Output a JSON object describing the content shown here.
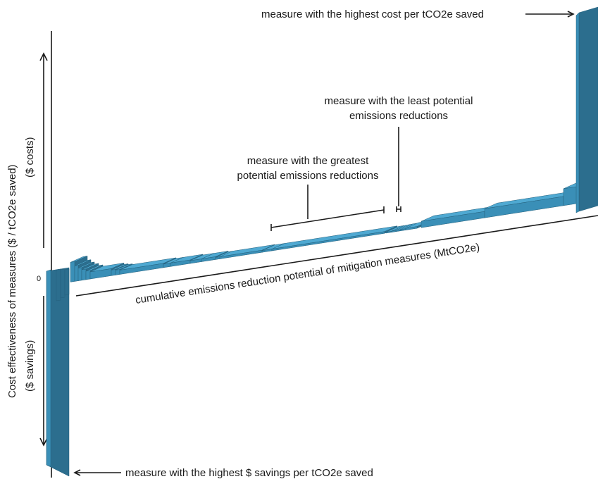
{
  "diagram": {
    "type": "marginal abatement cost curve (3D illustration)",
    "zero_label": "0",
    "y_axis_title": "Cost effectiveness of measures ($ / tCO2e saved)",
    "y_axis_costs_label": "($ costs)",
    "y_axis_savings_label": "($ savings)",
    "x_axis_title": "cumulative emissions reduction potential of mitigation measures (MtCO2e)",
    "annotations": {
      "highest_cost": "measure with the highest cost per tCO2e saved",
      "least_potential_line1": "measure with the least potential",
      "least_potential_line2": "emissions reductions",
      "greatest_potential_line1": "measure with the greatest",
      "greatest_potential_line2": "potential emissions reductions",
      "highest_savings": "measure with the highest $ savings per tCO2e saved"
    },
    "colors": {
      "front_face": "#3a8fb7",
      "top_face": "#4fa9d2",
      "side_face": "#2c6e8e",
      "lines": "#1a1a1a"
    }
  }
}
